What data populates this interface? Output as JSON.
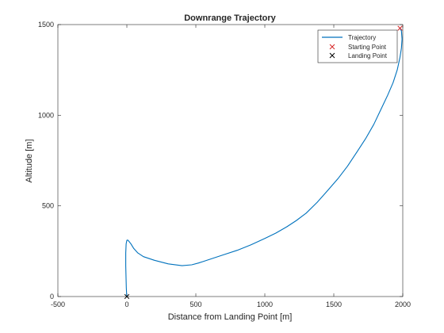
{
  "chart_data": {
    "type": "line",
    "title": "Downrange Trajectory",
    "xlabel": "Distance from Landing Point [m]",
    "ylabel": "Altitude [m]",
    "xlim": [
      -500,
      2000
    ],
    "ylim": [
      0,
      1500
    ],
    "x_ticks": [
      -500,
      0,
      500,
      1000,
      1500,
      2000
    ],
    "y_ticks": [
      0,
      500,
      1000,
      1500
    ],
    "x_tick_labels": [
      "-500",
      "0",
      "500",
      "1000",
      "1500",
      "2000"
    ],
    "y_tick_labels": [
      "0",
      "500",
      "1000",
      "1500"
    ],
    "grid": false,
    "legend_position": "top-right",
    "colors": {
      "trajectory": "#0072BD",
      "start_marker": "#D62728",
      "landing_marker": "#000000",
      "axes": "#262626"
    },
    "series": [
      {
        "name": "Trajectory",
        "type": "line",
        "x": [
          1980,
          1990,
          1995,
          1990,
          1980,
          1960,
          1930,
          1890,
          1840,
          1790,
          1730,
          1670,
          1600,
          1530,
          1450,
          1380,
          1300,
          1230,
          1160,
          1080,
          1000,
          900,
          800,
          700,
          600,
          520,
          470,
          400,
          300,
          200,
          120,
          80,
          50,
          30,
          15,
          5,
          0,
          -5,
          -8,
          -8,
          -6,
          -4,
          -2,
          0
        ],
        "y": [
          1480,
          1465,
          1420,
          1370,
          1320,
          1250,
          1180,
          1110,
          1030,
          950,
          870,
          800,
          720,
          650,
          580,
          520,
          460,
          420,
          385,
          350,
          320,
          285,
          255,
          230,
          205,
          185,
          175,
          170,
          180,
          200,
          220,
          240,
          265,
          290,
          305,
          312,
          310,
          290,
          240,
          170,
          100,
          50,
          15,
          0
        ]
      },
      {
        "name": "Starting Point",
        "type": "marker",
        "marker": "x",
        "x": [
          1980
        ],
        "y": [
          1480
        ]
      },
      {
        "name": "Landing Point",
        "type": "marker",
        "marker": "x",
        "x": [
          0
        ],
        "y": [
          0
        ]
      }
    ]
  }
}
